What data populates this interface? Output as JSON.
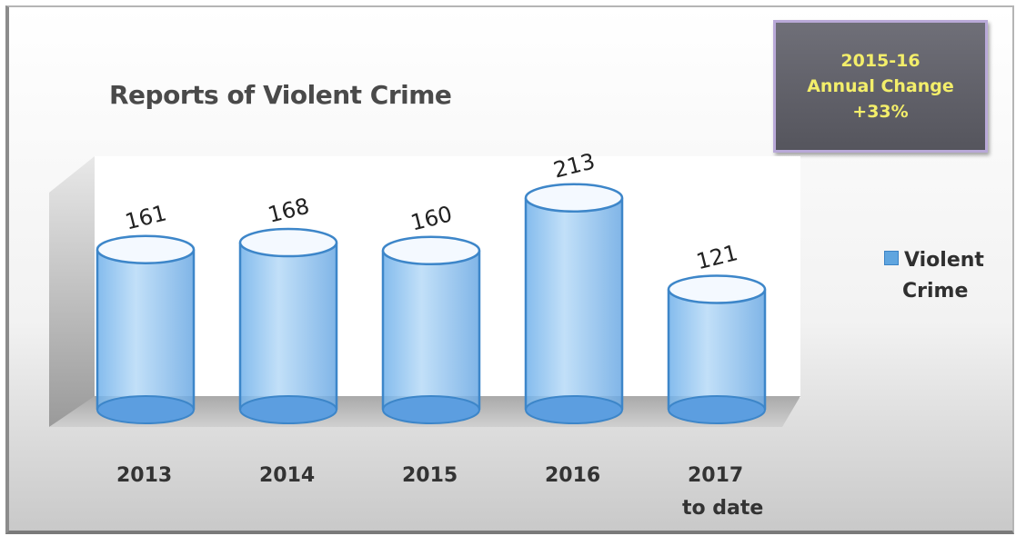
{
  "chart_data": {
    "type": "bar",
    "title": "Reports of Violent Crime",
    "categories": [
      [
        "2013"
      ],
      [
        "2014"
      ],
      [
        "2015"
      ],
      [
        "2016"
      ],
      [
        "2017",
        "to date"
      ]
    ],
    "series": [
      {
        "name": "Violent Crime",
        "values": [
          161,
          168,
          160,
          213,
          121
        ]
      }
    ],
    "data_labels": [
      "161",
      "168",
      "160",
      "213",
      "121"
    ],
    "legend": {
      "position": "right",
      "lines": [
        "Violent",
        "Crime"
      ]
    },
    "annotation": [
      "2015-16",
      "Annual Change",
      "+33%"
    ],
    "colors": {
      "bar": "#9ec8ee",
      "bar_outline": "#3d86c9",
      "annotation_text": "#f3ee6a",
      "annotation_bg": "#5f5f67"
    },
    "ylim": [
      0,
      250
    ],
    "grid": false
  }
}
